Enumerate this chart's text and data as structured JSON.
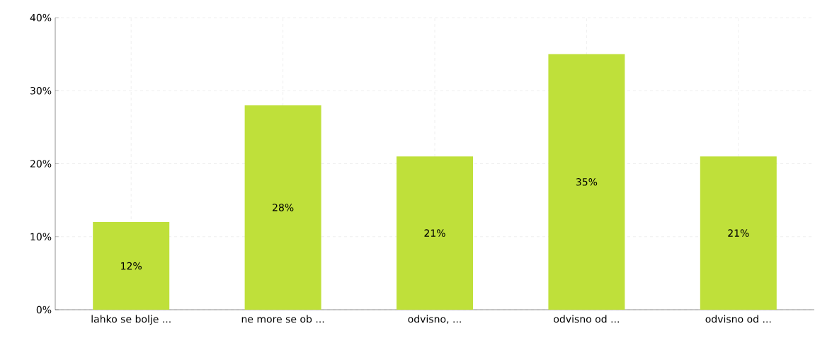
{
  "chart_data": {
    "type": "bar",
    "categories": [
      "lahko se bolje ...",
      "ne more se ob ...",
      "odvisno, ...",
      "odvisno od ...",
      "odvisno od ..."
    ],
    "values": [
      12,
      28,
      21,
      35,
      21
    ],
    "value_labels": [
      "12%",
      "28%",
      "21%",
      "35%",
      "21%"
    ],
    "color": "#bfe03a",
    "ylim": [
      0,
      40
    ],
    "yticks": [
      {
        "value": 0,
        "label": "0%"
      },
      {
        "value": 10,
        "label": "10%"
      },
      {
        "value": 20,
        "label": "20%"
      },
      {
        "value": 30,
        "label": "30%"
      },
      {
        "value": 40,
        "label": "40%"
      }
    ],
    "grid": true
  }
}
